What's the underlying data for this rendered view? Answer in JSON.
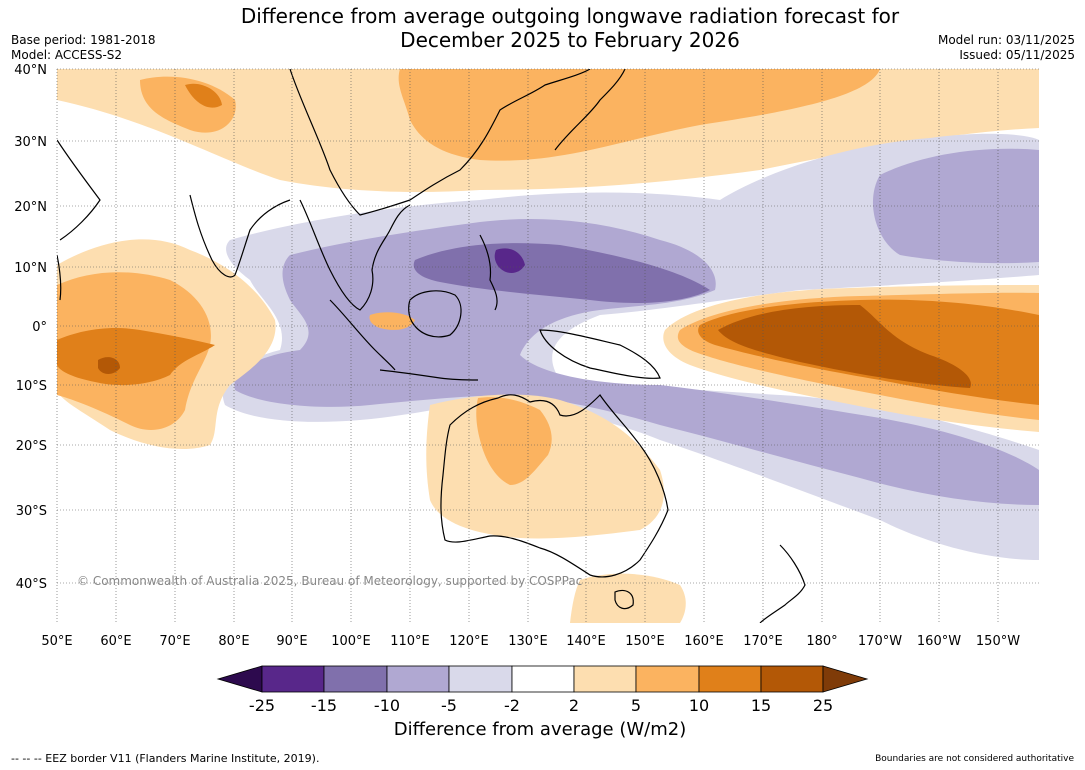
{
  "header": {
    "title_line1": "Difference from average outgoing longwave radiation forecast for",
    "title_line2": "December 2025 to February 2026",
    "base_period": "Base period: 1981-2018",
    "model": "Model: ACCESS-S2",
    "model_run": "Model run: 03/11/2025",
    "issued": "Issued: 05/11/2025"
  },
  "map": {
    "lon_labels": [
      "50°E",
      "60°E",
      "70°E",
      "80°E",
      "90°E",
      "100°E",
      "110°E",
      "120°E",
      "130°E",
      "140°E",
      "150°E",
      "160°E",
      "170°E",
      "180°",
      "170°W",
      "160°W",
      "150°W"
    ],
    "lat_labels": [
      "40°N",
      "30°N",
      "20°N",
      "10°N",
      "0°",
      "10°S",
      "20°S",
      "30°S",
      "40°S"
    ],
    "copyright": "© Commonwealth of Australia 2025, Bureau of Meteorology, supported by COSPPac"
  },
  "colorbar": {
    "title": "Difference from average (W/m2)",
    "labels": [
      "-25",
      "-15",
      "-10",
      "-5",
      "-2",
      "2",
      "5",
      "10",
      "15",
      "25"
    ],
    "colors": [
      "#2d0a4e",
      "#58278a",
      "#8070ac",
      "#b0a8d2",
      "#d9d9ea",
      "#ffffff",
      "#fddeb0",
      "#fbb360",
      "#e0801a",
      "#b35806",
      "#7f3b08"
    ]
  },
  "footer": {
    "eez_note": "--  --  -- EEZ border V11 (Flanders Marine Institute, 2019).",
    "boundaries_note": "Boundaries are not considered authoritative"
  }
}
